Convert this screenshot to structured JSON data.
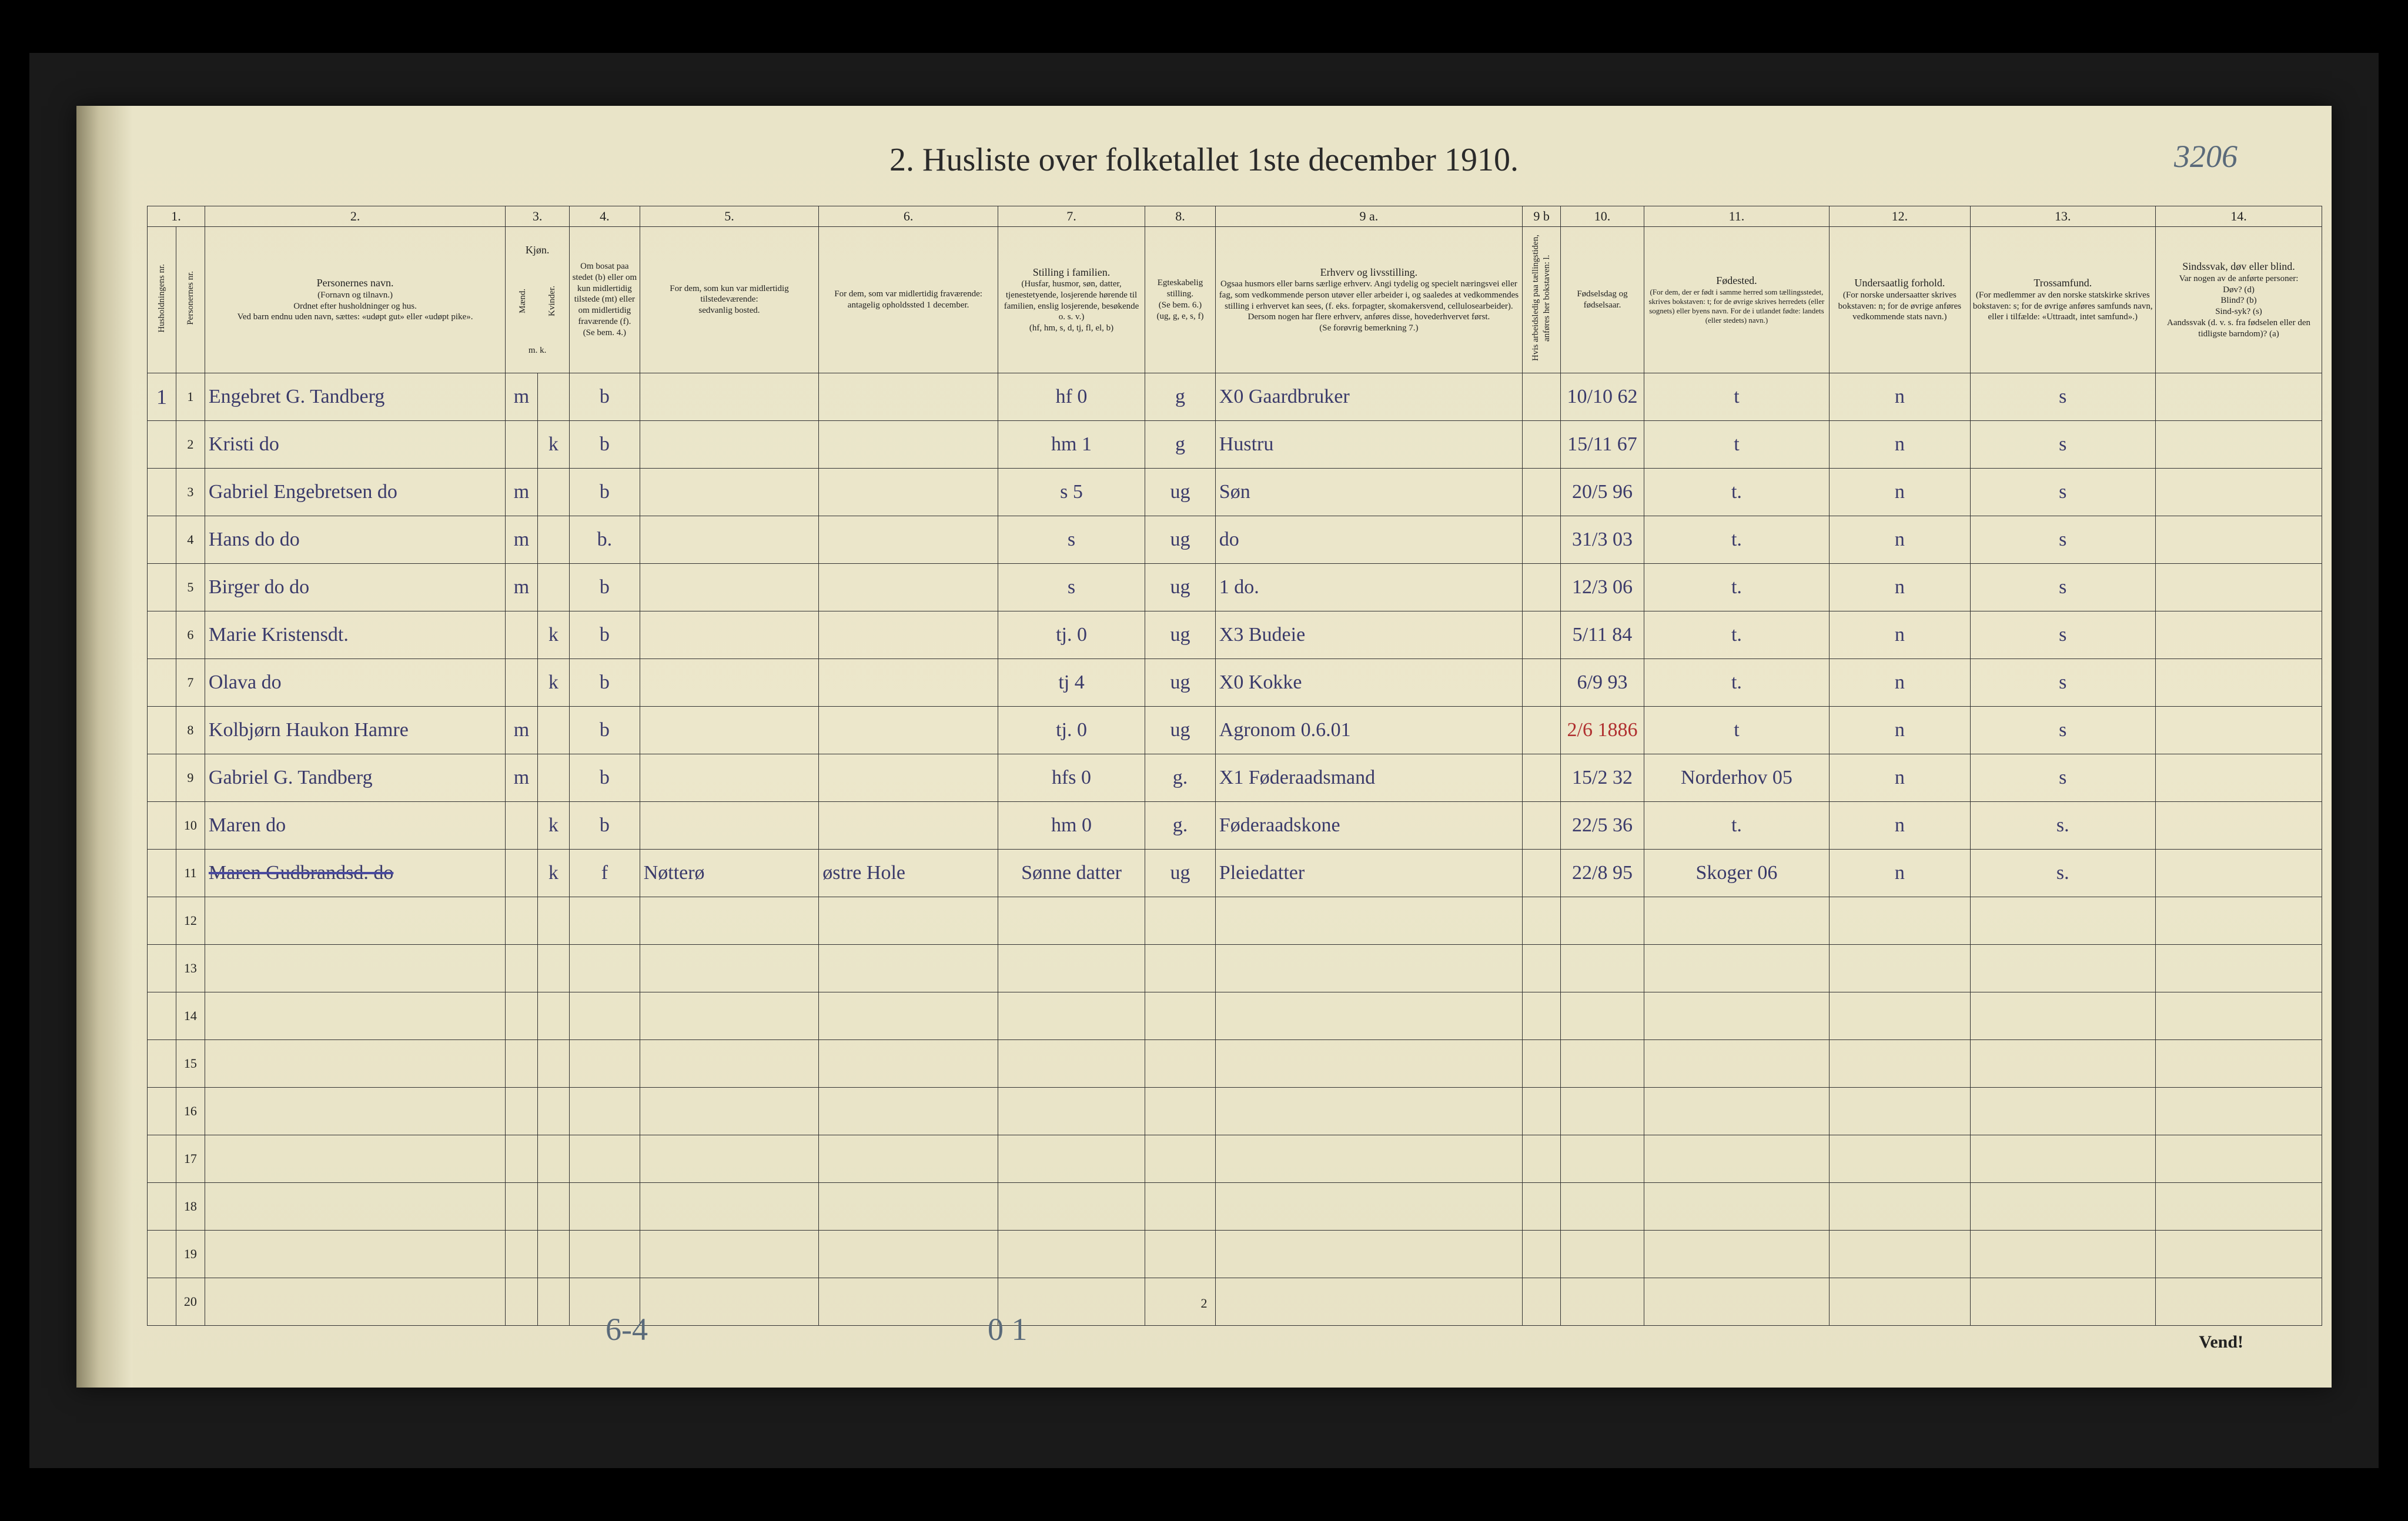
{
  "document": {
    "title_full": "2.  Husliste over folketallet 1ste december 1910.",
    "page_number_handwritten": "3206",
    "printed_page_number": "2",
    "vend_text": "Vend!",
    "footer_pencil_left": "6-4",
    "footer_pencil_mid": "0 1"
  },
  "columns": {
    "numbers": [
      "1.",
      "2.",
      "3.",
      "4.",
      "5.",
      "6.",
      "7.",
      "8.",
      "9 a.",
      "9 b",
      "10.",
      "11.",
      "12.",
      "13.",
      "14."
    ],
    "headers": {
      "c1": "Husholdningens nr.",
      "c2": "Personernes nr.",
      "c3_title": "Personernes navn.",
      "c3_sub": "(Fornavn og tilnavn.)\nOrdnet efter husholdninger og hus.\nVed barn endnu uden navn, sættes: «udøpt gut» eller «udøpt pike».",
      "c4_title": "Kjøn.",
      "c4_sub_m": "Mænd.",
      "c4_sub_k": "Kvinder.",
      "c4_bottom": "m.   k.",
      "c5_title": "Om bosat paa stedet (b) eller om kun midlertidig tilstede (mt) eller om midlertidig fraværende (f).",
      "c5_sub": "(Se bem. 4.)",
      "c6_title": "For dem, som kun var midlertidig tilstedeværende:",
      "c6_sub": "sedvanlig bosted.",
      "c7_title": "For dem, som var midlertidig fraværende:",
      "c7_sub": "antagelig opholdssted 1 december.",
      "c8_title": "Stilling i familien.",
      "c8_sub": "(Husfar, husmor, søn, datter, tjenestetyende, losjerende hørende til familien, enslig losjerende, besøkende o. s. v.)\n(hf, hm, s, d, tj, fl, el, b)",
      "c9_title": "Egteskabelig stilling.",
      "c9_sub": "(Se bem. 6.)\n(ug, g, e, s, f)",
      "c10_title": "Erhverv og livsstilling.",
      "c10_sub": "Ogsaa husmors eller barns særlige erhverv. Angi tydelig og specielt næringsvei eller fag, som vedkommende person utøver eller arbeider i, og saaledes at vedkommendes stilling i erhvervet kan sees, (f. eks. forpagter, skomakersvend, cellulosearbeider). Dersom nogen har flere erhverv, anføres disse, hovederhvervet først.\n(Se forøvrig bemerkning 7.)",
      "c11_title": "Hvis arbeidsledig paa tællingstiden, anføres her bokstaven: l.",
      "c12_title": "Fødselsdag og fødselsaar.",
      "c13_title": "Fødested.",
      "c13_sub": "(For dem, der er født i samme herred som tællingsstedet, skrives bokstaven: t; for de øvrige skrives herredets (eller sognets) eller byens navn. For de i utlandet fødte: landets (eller stedets) navn.)",
      "c14_title": "Undersaatlig forhold.",
      "c14_sub": "(For norske undersaatter skrives bokstaven: n; for de øvrige anføres vedkommende stats navn.)",
      "c15_title": "Trossamfund.",
      "c15_sub": "(For medlemmer av den norske statskirke skrives bokstaven: s; for de øvrige anføres samfunds navn, eller i tilfælde: «Uttraadt, intet samfund».)",
      "c16_title": "Sindssvak, døv eller blind.",
      "c16_sub": "Var nogen av de anførte personer:\nDøv? (d)\nBlind? (b)\nSind-syk? (s)\nAandssvak (d. v. s. fra fødselen eller den tidligste barndom)? (a)"
    }
  },
  "rows": [
    {
      "h": "1",
      "n": "1",
      "name": "Engebret G. Tandberg",
      "mk": "m",
      "bosat": "b",
      "sedv": "",
      "frav": "",
      "stilling": "hf",
      "st_note": "0",
      "egte": "g",
      "erhverv": "Gaardbruker",
      "erhv_note": "X0",
      "al": "",
      "fdato": "10/10 62",
      "fsted": "t",
      "und": "n",
      "tro": "s",
      "sinds": ""
    },
    {
      "h": "",
      "n": "2",
      "name": "Kristi      do",
      "mk": "k",
      "bosat": "b",
      "sedv": "",
      "frav": "",
      "stilling": "hm",
      "st_note": "1",
      "egte": "g",
      "erhverv": "Hustru",
      "erhv_note": "",
      "al": "",
      "fdato": "15/11 67",
      "fsted": "t",
      "und": "n",
      "tro": "s",
      "sinds": ""
    },
    {
      "h": "",
      "n": "3",
      "name": "Gabriel Engebretsen do",
      "mk": "m",
      "bosat": "b",
      "sedv": "",
      "frav": "",
      "stilling": "s",
      "st_note": "5",
      "egte": "ug",
      "erhverv": "Søn",
      "erhv_note": "",
      "al": "",
      "fdato": "20/5 96",
      "fsted": "t.",
      "und": "n",
      "tro": "s",
      "sinds": ""
    },
    {
      "h": "",
      "n": "4",
      "name": "Hans      do      do",
      "mk": "m",
      "bosat": "b.",
      "sedv": "",
      "frav": "",
      "stilling": "s",
      "st_note": "",
      "egte": "ug",
      "erhverv": "do",
      "erhv_note": "",
      "al": "",
      "fdato": "31/3 03",
      "fsted": "t.",
      "und": "n",
      "tro": "s",
      "sinds": ""
    },
    {
      "h": "",
      "n": "5",
      "name": "Birger    do      do",
      "mk": "m",
      "bosat": "b",
      "sedv": "",
      "frav": "",
      "stilling": "s",
      "st_note": "",
      "egte": "ug",
      "erhverv": "do.",
      "erhv_note": "1",
      "al": "",
      "fdato": "12/3 06",
      "fsted": "t.",
      "und": "n",
      "tro": "s",
      "sinds": ""
    },
    {
      "h": "",
      "n": "6",
      "name": "Marie Kristensdt.",
      "mk": "k",
      "bosat": "b",
      "sedv": "",
      "frav": "",
      "stilling": "tj.",
      "st_note": "0",
      "egte": "ug",
      "erhverv": "Budeie",
      "erhv_note": "X3",
      "al": "",
      "fdato": "5/11 84",
      "fsted": "t.",
      "und": "n",
      "tro": "s",
      "sinds": ""
    },
    {
      "h": "",
      "n": "7",
      "name": "Olava       do",
      "mk": "k",
      "bosat": "b",
      "sedv": "",
      "frav": "",
      "stilling": "tj",
      "st_note": "4",
      "egte": "ug",
      "erhverv": "Kokke",
      "erhv_note": "X0",
      "al": "",
      "fdato": "6/9 93",
      "fsted": "t.",
      "und": "n",
      "tro": "s",
      "sinds": ""
    },
    {
      "h": "",
      "n": "8",
      "name": "Kolbjørn Haukon Hamre",
      "mk": "m",
      "bosat": "b",
      "sedv": "",
      "frav": "",
      "stilling": "tj.",
      "st_note": "0",
      "egte": "ug",
      "erhverv": "Agronom   0.6.01",
      "erhv_note": "",
      "al": "",
      "fdato": "2/6 1886",
      "fsted": "t",
      "und": "n",
      "tro": "s",
      "sinds": "",
      "date_red": true
    },
    {
      "h": "",
      "n": "9",
      "name": "Gabriel G. Tandberg",
      "mk": "m",
      "bosat": "b",
      "sedv": "",
      "frav": "",
      "stilling": "hfs",
      "st_note": "0",
      "egte": "g.",
      "erhverv": "Føderaadsmand",
      "erhv_note": "X1",
      "al": "",
      "fdato": "15/2 32",
      "fsted": "Norderhov 05",
      "und": "n",
      "tro": "s",
      "sinds": ""
    },
    {
      "h": "",
      "n": "10",
      "name": "Maren      do",
      "mk": "k",
      "bosat": "b",
      "sedv": "",
      "frav": "",
      "stilling": "hm",
      "st_note": "0",
      "egte": "g.",
      "erhverv": "Føderaadskone",
      "erhv_note": "",
      "al": "",
      "fdato": "22/5 36",
      "fsted": "t.",
      "und": "n",
      "tro": "s.",
      "sinds": ""
    },
    {
      "h": "",
      "n": "11",
      "name": "Maren Gudbrandsd. do",
      "mk": "k",
      "bosat": "f",
      "sedv": "Nøtterø",
      "frav": "østre Hole",
      "stilling": "Sønne datter",
      "st_note": "",
      "egte": "ug",
      "erhverv": "Pleiedatter",
      "erhv_note": "",
      "al": "",
      "fdato": "22/8 95",
      "fsted": "Skoger 06",
      "und": "n",
      "tro": "s.",
      "sinds": "",
      "strike": true
    },
    {
      "h": "",
      "n": "12"
    },
    {
      "h": "",
      "n": "13"
    },
    {
      "h": "",
      "n": "14"
    },
    {
      "h": "",
      "n": "15"
    },
    {
      "h": "",
      "n": "16"
    },
    {
      "h": "",
      "n": "17"
    },
    {
      "h": "",
      "n": "18"
    },
    {
      "h": "",
      "n": "19"
    },
    {
      "h": "",
      "n": "20"
    }
  ]
}
